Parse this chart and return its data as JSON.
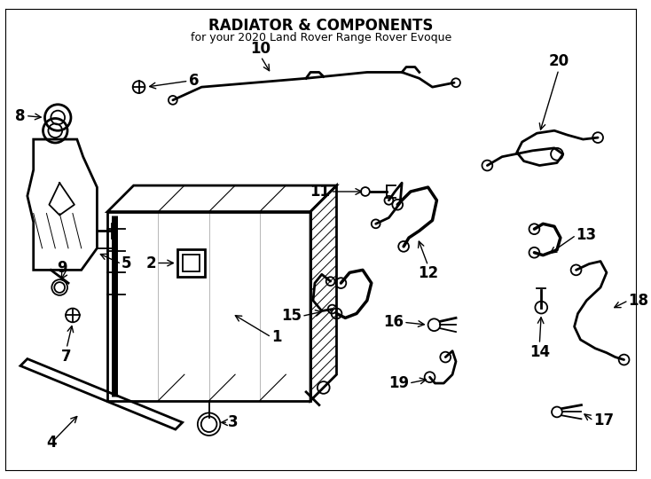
{
  "title": "RADIATOR & COMPONENTS",
  "subtitle": "for your 2020 Land Rover Range Rover Evoque",
  "background_color": "#ffffff",
  "line_color": "#000000",
  "text_color": "#000000",
  "label_fontsize": 12,
  "title_fontsize": 12,
  "subtitle_fontsize": 9,
  "figsize": [
    7.34,
    5.4
  ],
  "dpi": 100,
  "xlim": [
    0,
    734
  ],
  "ylim": [
    0,
    540
  ]
}
